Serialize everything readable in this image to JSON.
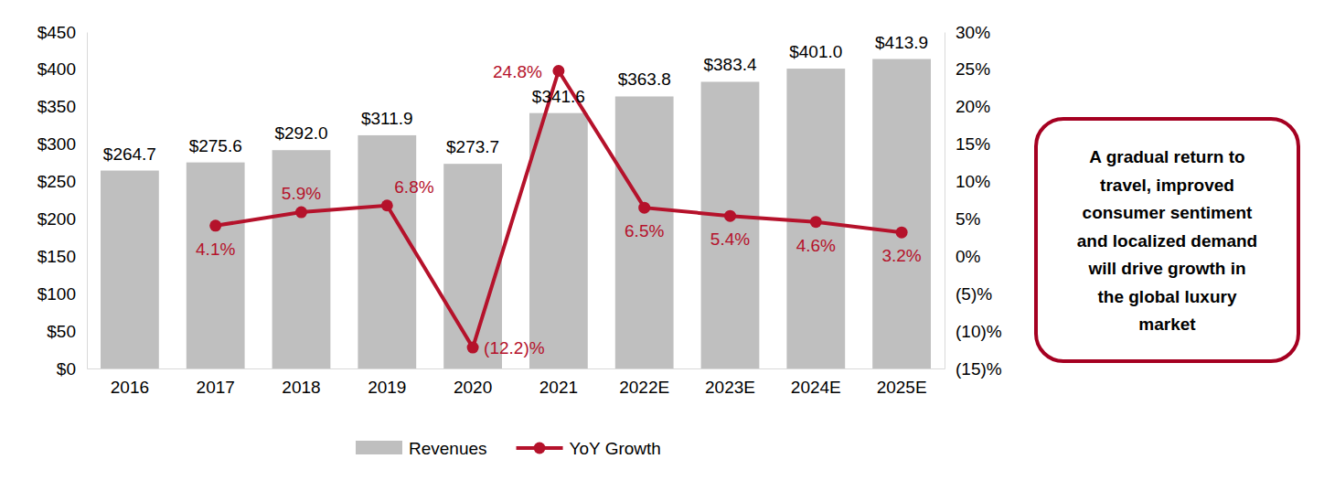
{
  "chart_data": {
    "type": "bar",
    "categories": [
      "2016",
      "2017",
      "2018",
      "2019",
      "2020",
      "2021",
      "2022E",
      "2023E",
      "2024E",
      "2025E"
    ],
    "series": [
      {
        "name": "Revenues",
        "type": "bar",
        "color": "#bfbfbf",
        "values": [
          264.7,
          275.6,
          292.0,
          311.9,
          273.7,
          341.6,
          363.8,
          383.4,
          401.0,
          413.9
        ],
        "value_labels": [
          "$264.7",
          "$275.6",
          "$292.0",
          "$311.9",
          "$273.7",
          "$341.6",
          "$363.8",
          "$383.4",
          "$401.0",
          "$413.9"
        ]
      },
      {
        "name": "YoY Growth",
        "type": "line",
        "color": "#b5122b",
        "axis": "y2",
        "marker": "circle",
        "values": [
          null,
          4.1,
          5.9,
          6.8,
          -12.2,
          24.8,
          6.5,
          5.4,
          4.6,
          3.2
        ],
        "value_labels": [
          null,
          "4.1%",
          "5.9%",
          "6.8%",
          "(12.2)%",
          "24.8%",
          "6.5%",
          "5.4%",
          "4.6%",
          "3.2%"
        ]
      }
    ],
    "ylim": [
      0,
      450
    ],
    "yticks": [
      {
        "value": 0,
        "label": "$0"
      },
      {
        "value": 50,
        "label": "$50"
      },
      {
        "value": 100,
        "label": "$100"
      },
      {
        "value": 150,
        "label": "$150"
      },
      {
        "value": 200,
        "label": "$200"
      },
      {
        "value": 250,
        "label": "$250"
      },
      {
        "value": 300,
        "label": "$300"
      },
      {
        "value": 350,
        "label": "$350"
      },
      {
        "value": 400,
        "label": "$400"
      },
      {
        "value": 450,
        "label": "$450"
      }
    ],
    "y2lim": [
      -15,
      30
    ],
    "y2ticks": [
      {
        "value": -15,
        "label": "(15)%"
      },
      {
        "value": -10,
        "label": "(10)%"
      },
      {
        "value": -5,
        "label": "(5)%"
      },
      {
        "value": 0,
        "label": "0%"
      },
      {
        "value": 5,
        "label": "5%"
      },
      {
        "value": 10,
        "label": "10%"
      },
      {
        "value": 15,
        "label": "15%"
      },
      {
        "value": 20,
        "label": "20%"
      },
      {
        "value": 25,
        "label": "25%"
      },
      {
        "value": 30,
        "label": "30%"
      }
    ],
    "data_labels": true,
    "legend": "bottom",
    "grid": false,
    "annotation": "A gradual return to travel, improved consumer sentiment and localized demand will drive growth in the global luxury market"
  }
}
